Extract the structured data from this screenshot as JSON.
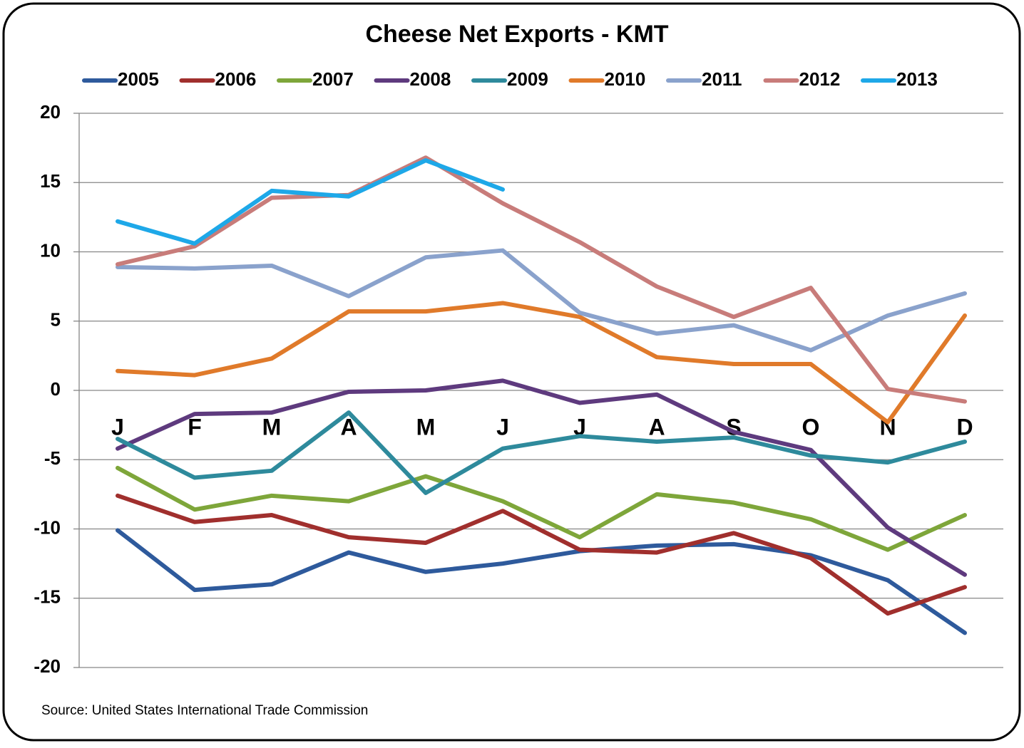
{
  "chart_data": {
    "type": "line",
    "title": "Cheese Net Exports - KMT",
    "source": "Source: United States International Trade Commission",
    "categories": [
      "J",
      "F",
      "M",
      "A",
      "M",
      "J",
      "J",
      "A",
      "S",
      "O",
      "N",
      "D"
    ],
    "ylim": [
      -20,
      20
    ],
    "yticks": [
      -20,
      -15,
      -10,
      -5,
      0,
      5,
      10,
      15,
      20
    ],
    "grid": true,
    "legend": "top",
    "series": [
      {
        "name": "2005",
        "color": "#2e5a9c",
        "values": [
          -10.1,
          -14.4,
          -14.0,
          -11.7,
          -13.1,
          -12.5,
          -11.6,
          -11.2,
          -11.1,
          -11.9,
          -13.7,
          -17.5
        ]
      },
      {
        "name": "2006",
        "color": "#a02f2d",
        "values": [
          -7.6,
          -9.5,
          -9.0,
          -10.6,
          -11.0,
          -8.7,
          -11.5,
          -11.7,
          -10.3,
          -12.1,
          -16.1,
          -14.2
        ]
      },
      {
        "name": "2007",
        "color": "#7ea63a",
        "values": [
          -5.6,
          -8.6,
          -7.6,
          -8.0,
          -6.2,
          -8.0,
          -10.6,
          -7.5,
          -8.1,
          -9.3,
          -11.5,
          -9.0
        ]
      },
      {
        "name": "2008",
        "color": "#5e3a7e",
        "values": [
          -4.2,
          -1.7,
          -1.6,
          -0.1,
          0.0,
          0.7,
          -0.9,
          -0.3,
          -3.0,
          -4.3,
          -9.9,
          -13.3
        ]
      },
      {
        "name": "2009",
        "color": "#2e8a9c",
        "values": [
          -3.5,
          -6.3,
          -5.8,
          -1.6,
          -7.4,
          -4.2,
          -3.3,
          -3.7,
          -3.4,
          -4.7,
          -5.2,
          -3.7
        ]
      },
      {
        "name": "2010",
        "color": "#e07a2a",
        "values": [
          1.4,
          1.1,
          2.3,
          5.7,
          5.7,
          6.3,
          5.3,
          2.4,
          1.9,
          1.9,
          -2.3,
          5.4
        ]
      },
      {
        "name": "2011",
        "color": "#8aa2cc",
        "values": [
          8.9,
          8.8,
          9.0,
          6.8,
          9.6,
          10.1,
          5.6,
          4.1,
          4.7,
          2.9,
          5.4,
          7.0
        ]
      },
      {
        "name": "2012",
        "color": "#c87c7a",
        "values": [
          9.1,
          10.4,
          13.9,
          14.1,
          16.8,
          13.5,
          10.7,
          7.5,
          5.3,
          7.4,
          0.1,
          -0.8
        ]
      },
      {
        "name": "2013",
        "color": "#1ea8e8",
        "values": [
          12.2,
          10.6,
          14.4,
          14.0,
          16.6,
          14.5,
          null,
          null,
          null,
          null,
          null,
          null
        ]
      }
    ]
  }
}
